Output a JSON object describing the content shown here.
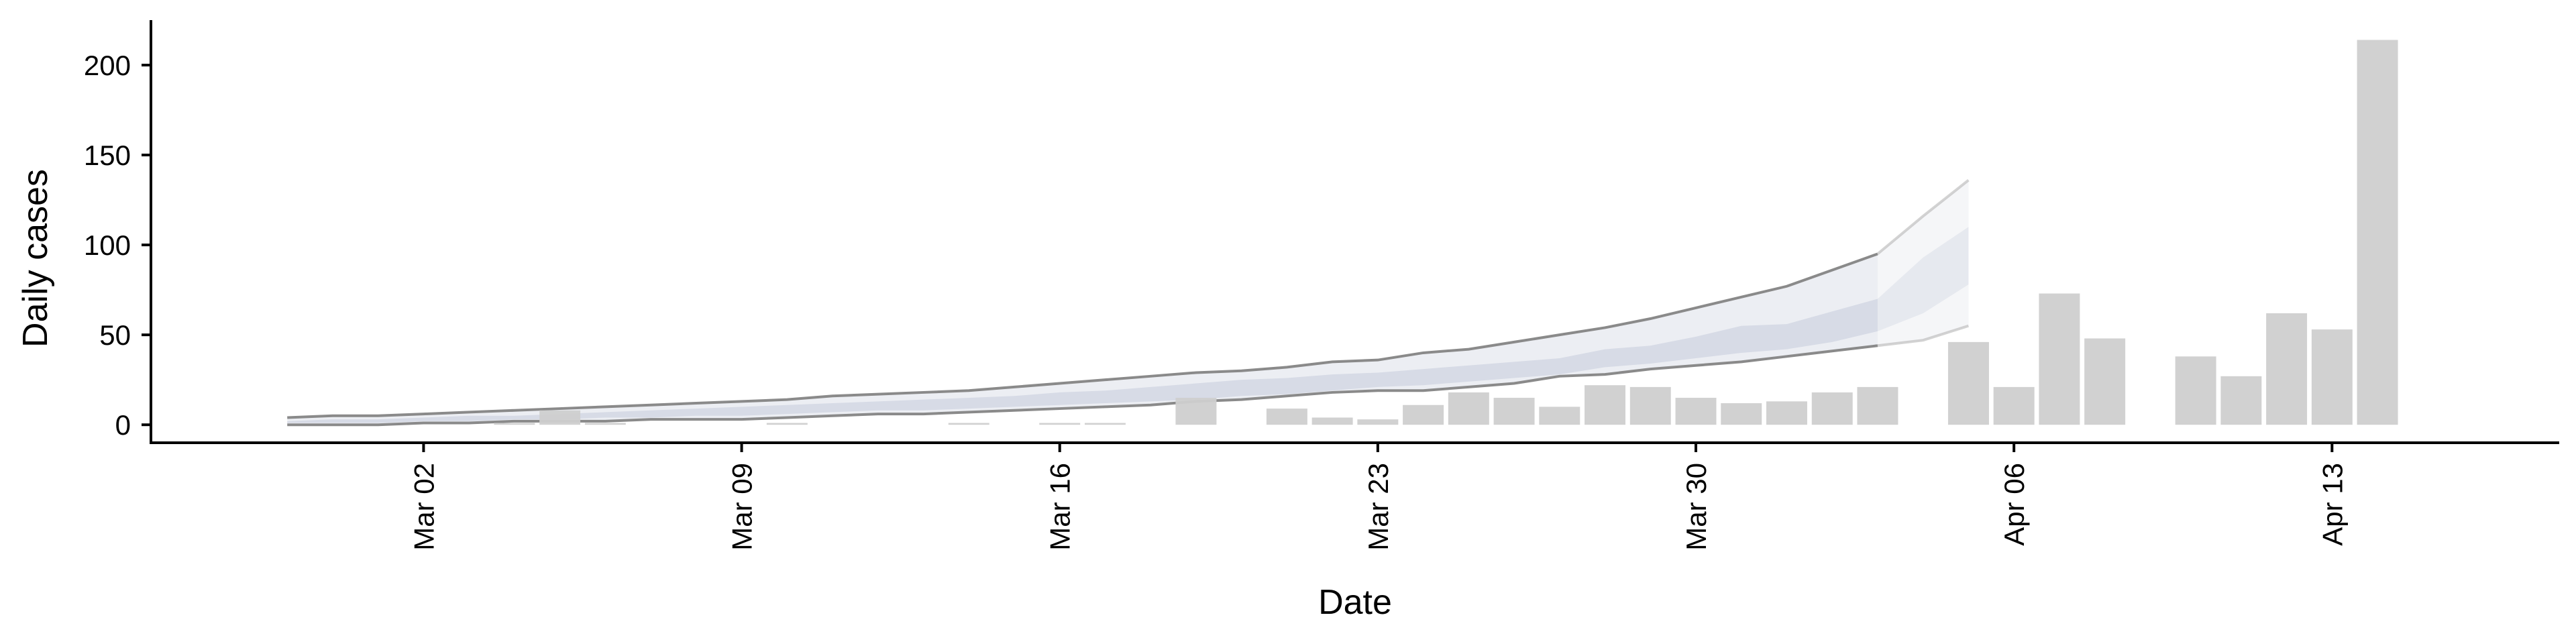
{
  "chart_data": {
    "type": "bar",
    "xlabel": "Date",
    "ylabel": "Daily cases",
    "ylim": [
      -10,
      225
    ],
    "yticks": [
      0,
      50,
      100,
      150,
      200
    ],
    "xlim_dates": [
      "2020-02-25",
      "2020-04-18"
    ],
    "xticks": [
      {
        "date": "2020-03-02",
        "label": "Mar 02"
      },
      {
        "date": "2020-03-09",
        "label": "Mar 09"
      },
      {
        "date": "2020-03-16",
        "label": "Mar 16"
      },
      {
        "date": "2020-03-23",
        "label": "Mar 23"
      },
      {
        "date": "2020-03-30",
        "label": "Mar 30"
      },
      {
        "date": "2020-04-06",
        "label": "Apr 06"
      },
      {
        "date": "2020-04-13",
        "label": "Apr 13"
      }
    ],
    "bars": [
      {
        "date": "2020-03-04",
        "value": 1
      },
      {
        "date": "2020-03-05",
        "value": 8
      },
      {
        "date": "2020-03-06",
        "value": 1
      },
      {
        "date": "2020-03-10",
        "value": 1
      },
      {
        "date": "2020-03-14",
        "value": 1
      },
      {
        "date": "2020-03-16",
        "value": 1
      },
      {
        "date": "2020-03-17",
        "value": 1
      },
      {
        "date": "2020-03-19",
        "value": 15
      },
      {
        "date": "2020-03-21",
        "value": 9
      },
      {
        "date": "2020-03-22",
        "value": 4
      },
      {
        "date": "2020-03-23",
        "value": 3
      },
      {
        "date": "2020-03-24",
        "value": 11
      },
      {
        "date": "2020-03-25",
        "value": 18
      },
      {
        "date": "2020-03-26",
        "value": 15
      },
      {
        "date": "2020-03-27",
        "value": 10
      },
      {
        "date": "2020-03-28",
        "value": 22
      },
      {
        "date": "2020-03-29",
        "value": 21
      },
      {
        "date": "2020-03-30",
        "value": 15
      },
      {
        "date": "2020-03-31",
        "value": 12
      },
      {
        "date": "2020-04-01",
        "value": 13
      },
      {
        "date": "2020-04-02",
        "value": 18
      },
      {
        "date": "2020-04-03",
        "value": 21
      },
      {
        "date": "2020-04-05",
        "value": 46
      },
      {
        "date": "2020-04-06",
        "value": 21
      },
      {
        "date": "2020-04-07",
        "value": 73
      },
      {
        "date": "2020-04-08",
        "value": 48
      },
      {
        "date": "2020-04-10",
        "value": 38
      },
      {
        "date": "2020-04-11",
        "value": 27
      },
      {
        "date": "2020-04-12",
        "value": 62
      },
      {
        "date": "2020-04-13",
        "value": 53
      },
      {
        "date": "2020-04-14",
        "value": 214
      }
    ],
    "estimate": {
      "dates": [
        "2020-02-28",
        "2020-02-29",
        "2020-03-01",
        "2020-03-02",
        "2020-03-03",
        "2020-03-04",
        "2020-03-05",
        "2020-03-06",
        "2020-03-07",
        "2020-03-08",
        "2020-03-09",
        "2020-03-10",
        "2020-03-11",
        "2020-03-12",
        "2020-03-13",
        "2020-03-14",
        "2020-03-15",
        "2020-03-16",
        "2020-03-17",
        "2020-03-18",
        "2020-03-19",
        "2020-03-20",
        "2020-03-21",
        "2020-03-22",
        "2020-03-23",
        "2020-03-24",
        "2020-03-25",
        "2020-03-26",
        "2020-03-27",
        "2020-03-28",
        "2020-03-29",
        "2020-03-30",
        "2020-03-31",
        "2020-04-01",
        "2020-04-02",
        "2020-04-03",
        "2020-04-04",
        "2020-04-05"
      ],
      "upper": [
        4,
        5,
        5,
        6,
        7,
        8,
        9,
        10,
        11,
        12,
        13,
        14,
        16,
        17,
        18,
        19,
        21,
        23,
        25,
        27,
        29,
        30,
        32,
        35,
        36,
        40,
        42,
        46,
        50,
        54,
        59,
        65,
        71,
        77,
        86,
        95,
        116,
        136
      ],
      "lower": [
        0,
        0,
        0,
        1,
        1,
        2,
        2,
        2,
        3,
        3,
        3,
        4,
        5,
        6,
        6,
        7,
        8,
        9,
        10,
        11,
        13,
        14,
        16,
        18,
        19,
        19,
        21,
        23,
        27,
        28,
        31,
        33,
        35,
        38,
        41,
        44,
        47,
        55
      ],
      "inner_upper": [
        2,
        3,
        3,
        4,
        5,
        5,
        6,
        7,
        8,
        9,
        10,
        11,
        12,
        13,
        14,
        15,
        16,
        18,
        19,
        21,
        23,
        25,
        26,
        28,
        29,
        31,
        33,
        35,
        37,
        42,
        44,
        49,
        55,
        56,
        63,
        70,
        93,
        110
      ],
      "inner_lower": [
        1,
        1,
        1,
        2,
        2,
        3,
        3,
        4,
        4,
        5,
        5,
        6,
        7,
        8,
        8,
        9,
        10,
        11,
        12,
        13,
        14,
        16,
        17,
        19,
        21,
        22,
        24,
        26,
        28,
        32,
        34,
        37,
        40,
        42,
        46,
        52,
        62,
        78
      ],
      "nowcast_from_date": "2020-04-03"
    },
    "colors": {
      "bars": "#cfcfcf",
      "bars_early": "#c4c4c4",
      "ci_outer": "#eceef3",
      "ci_inner": "#d7dbe6",
      "ci_line_dark": "#8a8a8a",
      "ci_line_light": "#b5b5b5",
      "axis": "#000000"
    },
    "grid": false,
    "legend": "none"
  }
}
